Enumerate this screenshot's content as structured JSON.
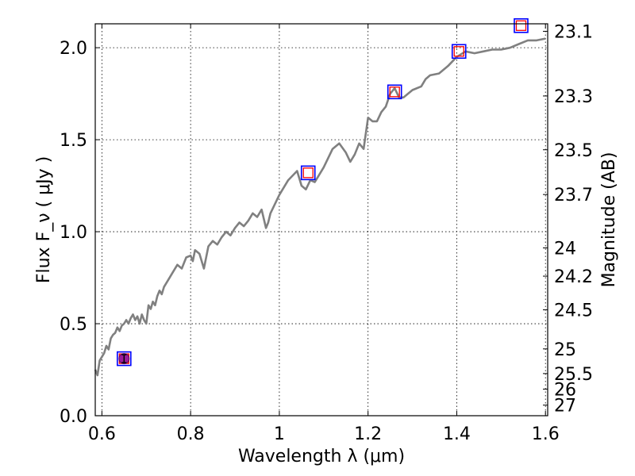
{
  "chart_data": {
    "type": "line",
    "title": "",
    "xlabel": "Wavelength  λ (μm)",
    "ylabel": "Flux  F_ν  ( μJy )",
    "y2label": "Magnitude (AB)",
    "xlim": [
      0.585,
      1.605
    ],
    "ylim": [
      0.0,
      2.13
    ],
    "grid": true,
    "x_ticks": [
      0.6,
      0.8,
      1.0,
      1.2,
      1.4,
      1.6
    ],
    "x_tick_labels": [
      "0.6",
      "0.8",
      "1",
      "1.2",
      "1.4",
      "1.6"
    ],
    "y_ticks": [
      0.0,
      0.5,
      1.0,
      1.5,
      2.0
    ],
    "y_tick_labels": [
      "0.0",
      "0.5",
      "1.0",
      "1.5",
      "2.0"
    ],
    "y2_tick_labels": [
      "23.1",
      "23.3",
      "23.5",
      "23.7",
      "24",
      "24.2",
      "24.5",
      "25",
      "25.5",
      "26",
      "27"
    ],
    "colors": {
      "model": "#808080",
      "outer_box": "#0000ff",
      "inner_box": "#ff0000",
      "observed_point": "#9b1b9b"
    },
    "series": [
      {
        "type": "line",
        "x": [
          0.585,
          0.59,
          0.595,
          0.6,
          0.605,
          0.61,
          0.615,
          0.62,
          0.625,
          0.63,
          0.635,
          0.64,
          0.645,
          0.65,
          0.655,
          0.66,
          0.665,
          0.67,
          0.675,
          0.68,
          0.685,
          0.69,
          0.695,
          0.7,
          0.705,
          0.71,
          0.715,
          0.72,
          0.725,
          0.73,
          0.735,
          0.74,
          0.75,
          0.76,
          0.77,
          0.78,
          0.79,
          0.8,
          0.805,
          0.81,
          0.82,
          0.83,
          0.84,
          0.85,
          0.86,
          0.87,
          0.88,
          0.89,
          0.9,
          0.91,
          0.92,
          0.93,
          0.94,
          0.95,
          0.96,
          0.97,
          0.975,
          0.98,
          0.99,
          1.0,
          1.02,
          1.04,
          1.05,
          1.06,
          1.07,
          1.08,
          1.1,
          1.12,
          1.135,
          1.15,
          1.16,
          1.17,
          1.18,
          1.19,
          1.2,
          1.21,
          1.22,
          1.23,
          1.24,
          1.25,
          1.26,
          1.27,
          1.28,
          1.29,
          1.3,
          1.32,
          1.33,
          1.34,
          1.36,
          1.38,
          1.4,
          1.42,
          1.44,
          1.46,
          1.48,
          1.5,
          1.52,
          1.54,
          1.56,
          1.58,
          1.6
        ],
        "y": [
          0.25,
          0.22,
          0.3,
          0.32,
          0.34,
          0.38,
          0.36,
          0.42,
          0.44,
          0.45,
          0.48,
          0.46,
          0.49,
          0.5,
          0.52,
          0.5,
          0.53,
          0.55,
          0.52,
          0.54,
          0.5,
          0.55,
          0.52,
          0.5,
          0.6,
          0.58,
          0.62,
          0.6,
          0.65,
          0.68,
          0.66,
          0.7,
          0.74,
          0.78,
          0.82,
          0.8,
          0.86,
          0.87,
          0.84,
          0.9,
          0.88,
          0.8,
          0.92,
          0.95,
          0.93,
          0.97,
          1.0,
          0.98,
          1.02,
          1.05,
          1.03,
          1.06,
          1.1,
          1.08,
          1.12,
          1.02,
          1.05,
          1.1,
          1.15,
          1.2,
          1.28,
          1.33,
          1.25,
          1.23,
          1.28,
          1.27,
          1.35,
          1.45,
          1.48,
          1.43,
          1.38,
          1.42,
          1.48,
          1.45,
          1.62,
          1.6,
          1.6,
          1.65,
          1.68,
          1.75,
          1.78,
          1.73,
          1.73,
          1.75,
          1.77,
          1.79,
          1.83,
          1.85,
          1.86,
          1.9,
          1.95,
          1.98,
          1.97,
          1.98,
          1.99,
          1.99,
          2.0,
          2.02,
          2.04,
          2.04,
          2.05
        ]
      },
      {
        "type": "scatter",
        "x": [
          0.65,
          1.065,
          1.26,
          1.405,
          1.545
        ],
        "y": [
          0.31,
          1.32,
          1.76,
          1.98,
          2.12
        ]
      },
      {
        "type": "scatter",
        "x": [
          0.65
        ],
        "y": [
          0.31
        ]
      }
    ]
  }
}
